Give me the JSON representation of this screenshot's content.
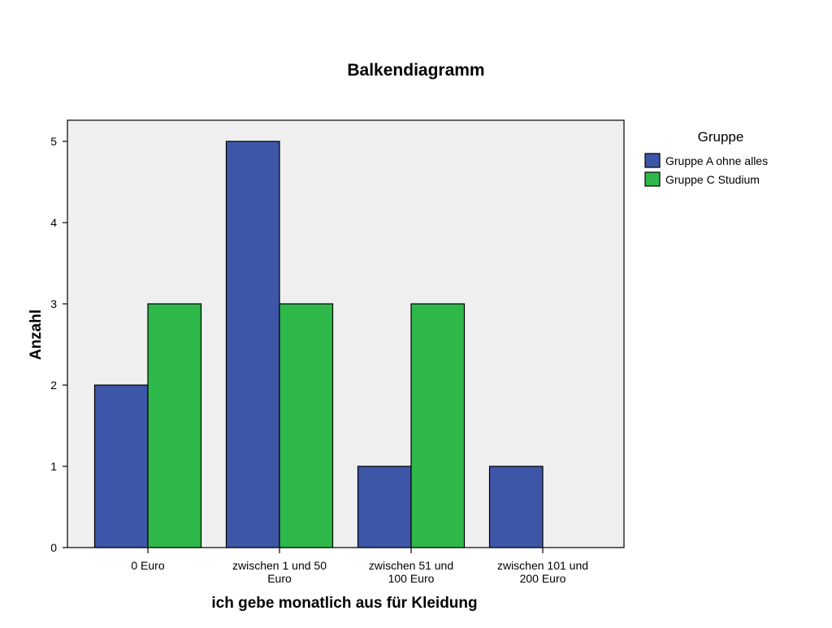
{
  "chart_data": {
    "type": "bar",
    "title": "Balkendiagramm",
    "xlabel": "ich gebe monatlich aus für Kleidung",
    "ylabel": "Anzahl",
    "categories": [
      [
        "0 Euro"
      ],
      [
        "zwischen 1 und 50",
        "Euro"
      ],
      [
        "zwischen 51 und",
        "100 Euro"
      ],
      [
        "zwischen 101 und",
        "200 Euro"
      ]
    ],
    "series": [
      {
        "name": "Gruppe A ohne alles",
        "color": "#3d56a8",
        "values": [
          2,
          5,
          1,
          1
        ]
      },
      {
        "name": "Gruppe C Studium",
        "color": "#2fb84a",
        "values": [
          3,
          3,
          3,
          0
        ]
      }
    ],
    "ylim": [
      0,
      5
    ],
    "yticks": [
      0,
      1,
      2,
      3,
      4,
      5
    ],
    "legend": {
      "title": "Gruppe",
      "placement": "right"
    },
    "plot_background": "#efefef",
    "grid": false
  }
}
